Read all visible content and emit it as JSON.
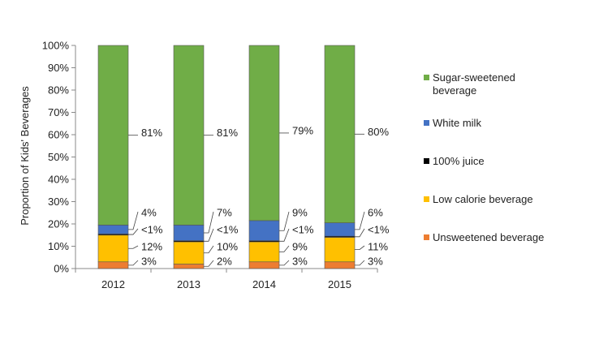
{
  "chart_data": {
    "type": "bar",
    "stacked": true,
    "categories": [
      "2012",
      "2013",
      "2014",
      "2015"
    ],
    "ylabel": "Proportion of Kids' Beverages",
    "xlabel": "",
    "ylim": [
      0,
      100
    ],
    "ytick_labels": [
      "0%",
      "10%",
      "20%",
      "30%",
      "40%",
      "50%",
      "60%",
      "70%",
      "80%",
      "90%",
      "100%"
    ],
    "grid": false,
    "legend_position": "right",
    "series": [
      {
        "name": "Unsweetened beverage",
        "color": "#ED7D31",
        "values": [
          3,
          2,
          3,
          3
        ],
        "labels": [
          "3%",
          "2%",
          "3%",
          "3%"
        ]
      },
      {
        "name": "Low calorie beverage",
        "color": "#FFC000",
        "values": [
          12,
          10,
          9,
          11
        ],
        "labels": [
          "12%",
          "10%",
          "9%",
          "11%"
        ]
      },
      {
        "name": "100% juice",
        "color": "#000000",
        "values": [
          0.5,
          0.5,
          0.5,
          0.5
        ],
        "labels": [
          "<1%",
          "<1%",
          "<1%",
          "<1%"
        ]
      },
      {
        "name": "White milk",
        "color": "#4472C4",
        "values": [
          4,
          7,
          9,
          6
        ],
        "labels": [
          "4%",
          "7%",
          "9%",
          "6%"
        ]
      },
      {
        "name": "Sugar-sweetened beverage",
        "color": "#70AD47",
        "values": [
          80.5,
          80.5,
          78.5,
          79.5
        ],
        "labels": [
          "81%",
          "81%",
          "79%",
          "80%"
        ]
      }
    ],
    "legend": [
      {
        "line1": "Sugar-sweetened",
        "line2": "beverage",
        "color": "#70AD47"
      },
      {
        "line1": "White milk",
        "line2": "",
        "color": "#4472C4"
      },
      {
        "line1": "100% juice",
        "line2": "",
        "color": "#000000"
      },
      {
        "line1": "Low calorie beverage",
        "line2": "",
        "color": "#FFC000"
      },
      {
        "line1": "Unsweetened beverage",
        "line2": "",
        "color": "#ED7D31"
      }
    ]
  }
}
